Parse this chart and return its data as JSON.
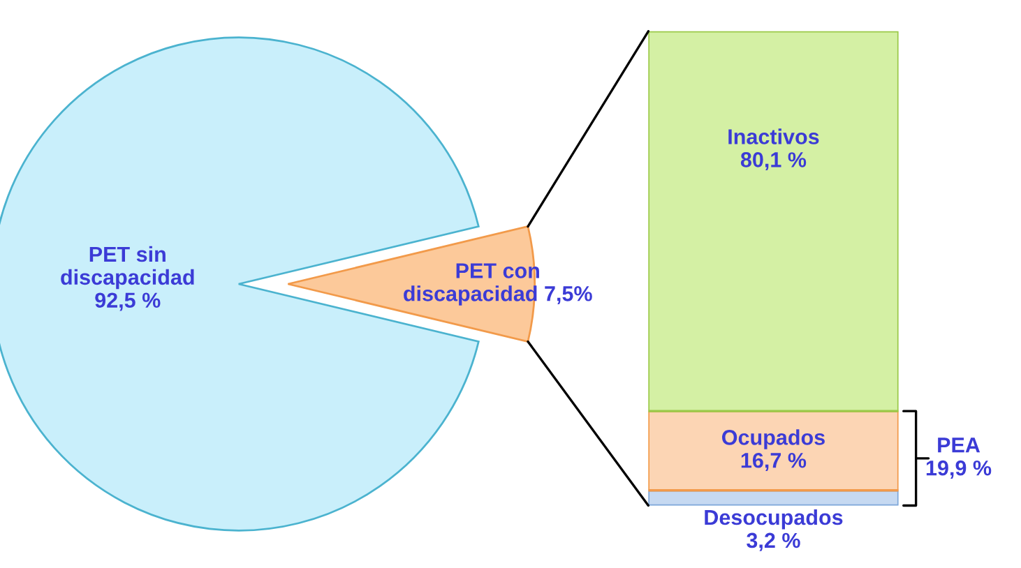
{
  "chart_data": [
    {
      "type": "pie",
      "categories": [
        "PET sin\ndiscapacidad",
        "PET con\ndiscapacidad"
      ],
      "values": [
        92.5,
        7.5
      ],
      "colors": [
        "#c9effb",
        "#fcc99a"
      ],
      "value_labels": [
        "92,5 %",
        "7,5%"
      ]
    },
    {
      "type": "bar",
      "stacked": true,
      "categories": [
        null
      ],
      "data_labels": false,
      "annotations": [
        "PEA\n19,9 %"
      ],
      "series": [
        {
          "name": "Desocupados",
          "color": "#c6d9f1",
          "values": [
            3.2
          ],
          "value_labels": [
            "3,2 %"
          ]
        },
        {
          "name": "Ocupados",
          "color": "#fcd5b4",
          "values": [
            16.7
          ],
          "value_labels": [
            "16,7 %"
          ]
        },
        {
          "name": "Inactivos",
          "color": "#d4f0a4",
          "values": [
            80.1
          ],
          "value_labels": [
            "80,1 %"
          ]
        }
      ]
    }
  ]
}
